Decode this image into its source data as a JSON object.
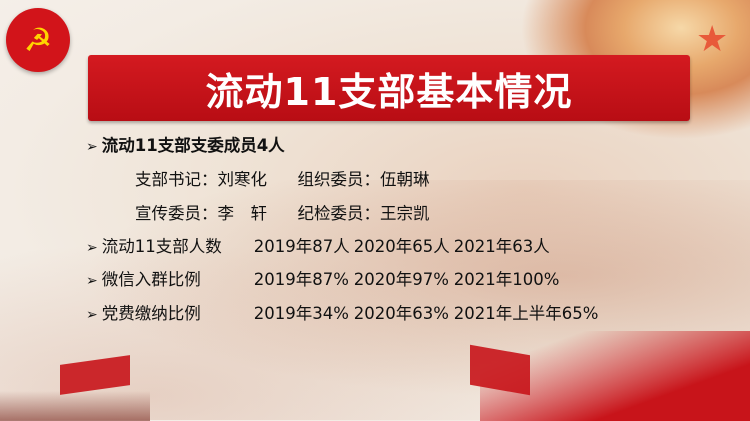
{
  "title": "流动11支部基本情况",
  "bullets": [
    {
      "label": "流动11支部支委成员4人"
    },
    {
      "label": "流动11支部人数",
      "values": [
        "2019年87人",
        "2020年65人",
        "2021年63人"
      ]
    },
    {
      "label": "微信入群比例",
      "values": [
        "2019年87%",
        "2020年97%",
        "2021年100%"
      ]
    },
    {
      "label": "党费缴纳比例",
      "values": [
        "2019年34%",
        "2020年63%",
        "2021年上半年65%"
      ]
    }
  ],
  "members": [
    {
      "role": "支部书记：",
      "name": "刘寒化"
    },
    {
      "role": "组织委员：",
      "name": "伍朝琳"
    },
    {
      "role": "宣传委员：",
      "name": "李　轩"
    },
    {
      "role": "纪检委员：",
      "name": "王宗凯"
    }
  ],
  "bullet_icon": "arrowhead-bullet",
  "colors": {
    "banner": "#c8141a",
    "title_text": "#ffffff",
    "logo": "#d2141a",
    "logo_symbol": "#ffd400"
  }
}
